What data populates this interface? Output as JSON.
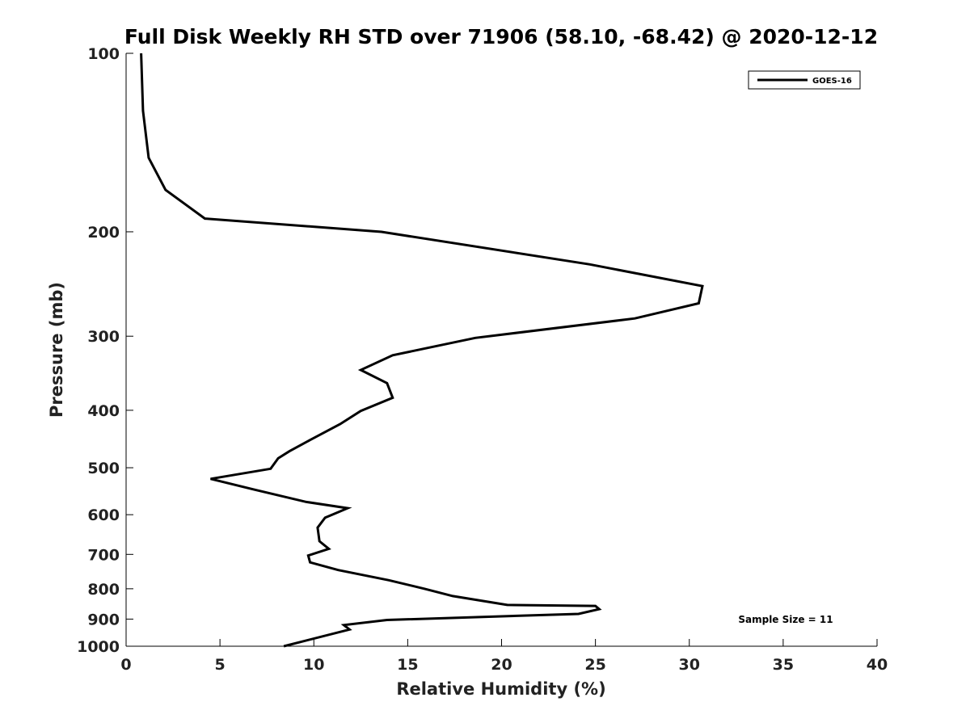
{
  "chart_data": {
    "type": "line",
    "title": "Full Disk Weekly RH STD over 71906 (58.10, -68.42) @ 2020-12-12",
    "xlabel": "Relative Humidity (%)",
    "ylabel": "Pressure (mb)",
    "xlim": [
      0,
      40
    ],
    "ylim": [
      1000,
      100
    ],
    "y_scale": "log",
    "x_ticks": [
      0,
      5,
      10,
      15,
      20,
      25,
      30,
      35,
      40
    ],
    "y_ticks": [
      100,
      200,
      300,
      400,
      500,
      600,
      700,
      800,
      900,
      1000
    ],
    "grid": false,
    "legend_position": "top-right",
    "annotation": "Sample Size = 11",
    "series": [
      {
        "name": "GOES-16",
        "color": "#000000",
        "points": [
          [
            0.8,
            100
          ],
          [
            0.9,
            125
          ],
          [
            1.2,
            150
          ],
          [
            2.1,
            170
          ],
          [
            4.2,
            190
          ],
          [
            13.6,
            200
          ],
          [
            24.7,
            227
          ],
          [
            30.7,
            247
          ],
          [
            30.5,
            264
          ],
          [
            27.1,
            280
          ],
          [
            18.6,
            302
          ],
          [
            14.2,
            323
          ],
          [
            12.5,
            342
          ],
          [
            13.9,
            360
          ],
          [
            14.2,
            381
          ],
          [
            12.5,
            401
          ],
          [
            11.4,
            422
          ],
          [
            9.8,
            449
          ],
          [
            8.7,
            469
          ],
          [
            8.1,
            482
          ],
          [
            7.7,
            502
          ],
          [
            4.5,
            522
          ],
          [
            6.8,
            544
          ],
          [
            9.6,
            571
          ],
          [
            11.8,
            585
          ],
          [
            10.6,
            607
          ],
          [
            10.2,
            631
          ],
          [
            10.3,
            665
          ],
          [
            10.8,
            685
          ],
          [
            9.7,
            703
          ],
          [
            9.8,
            722
          ],
          [
            11.3,
            744
          ],
          [
            14.0,
            774
          ],
          [
            15.9,
            800
          ],
          [
            17.4,
            823
          ],
          [
            20.3,
            852
          ],
          [
            25.0,
            855
          ],
          [
            25.2,
            866
          ],
          [
            24.1,
            882
          ],
          [
            13.9,
            903
          ],
          [
            11.6,
            921
          ],
          [
            11.9,
            937
          ],
          [
            8.4,
            1000
          ]
        ]
      }
    ]
  }
}
